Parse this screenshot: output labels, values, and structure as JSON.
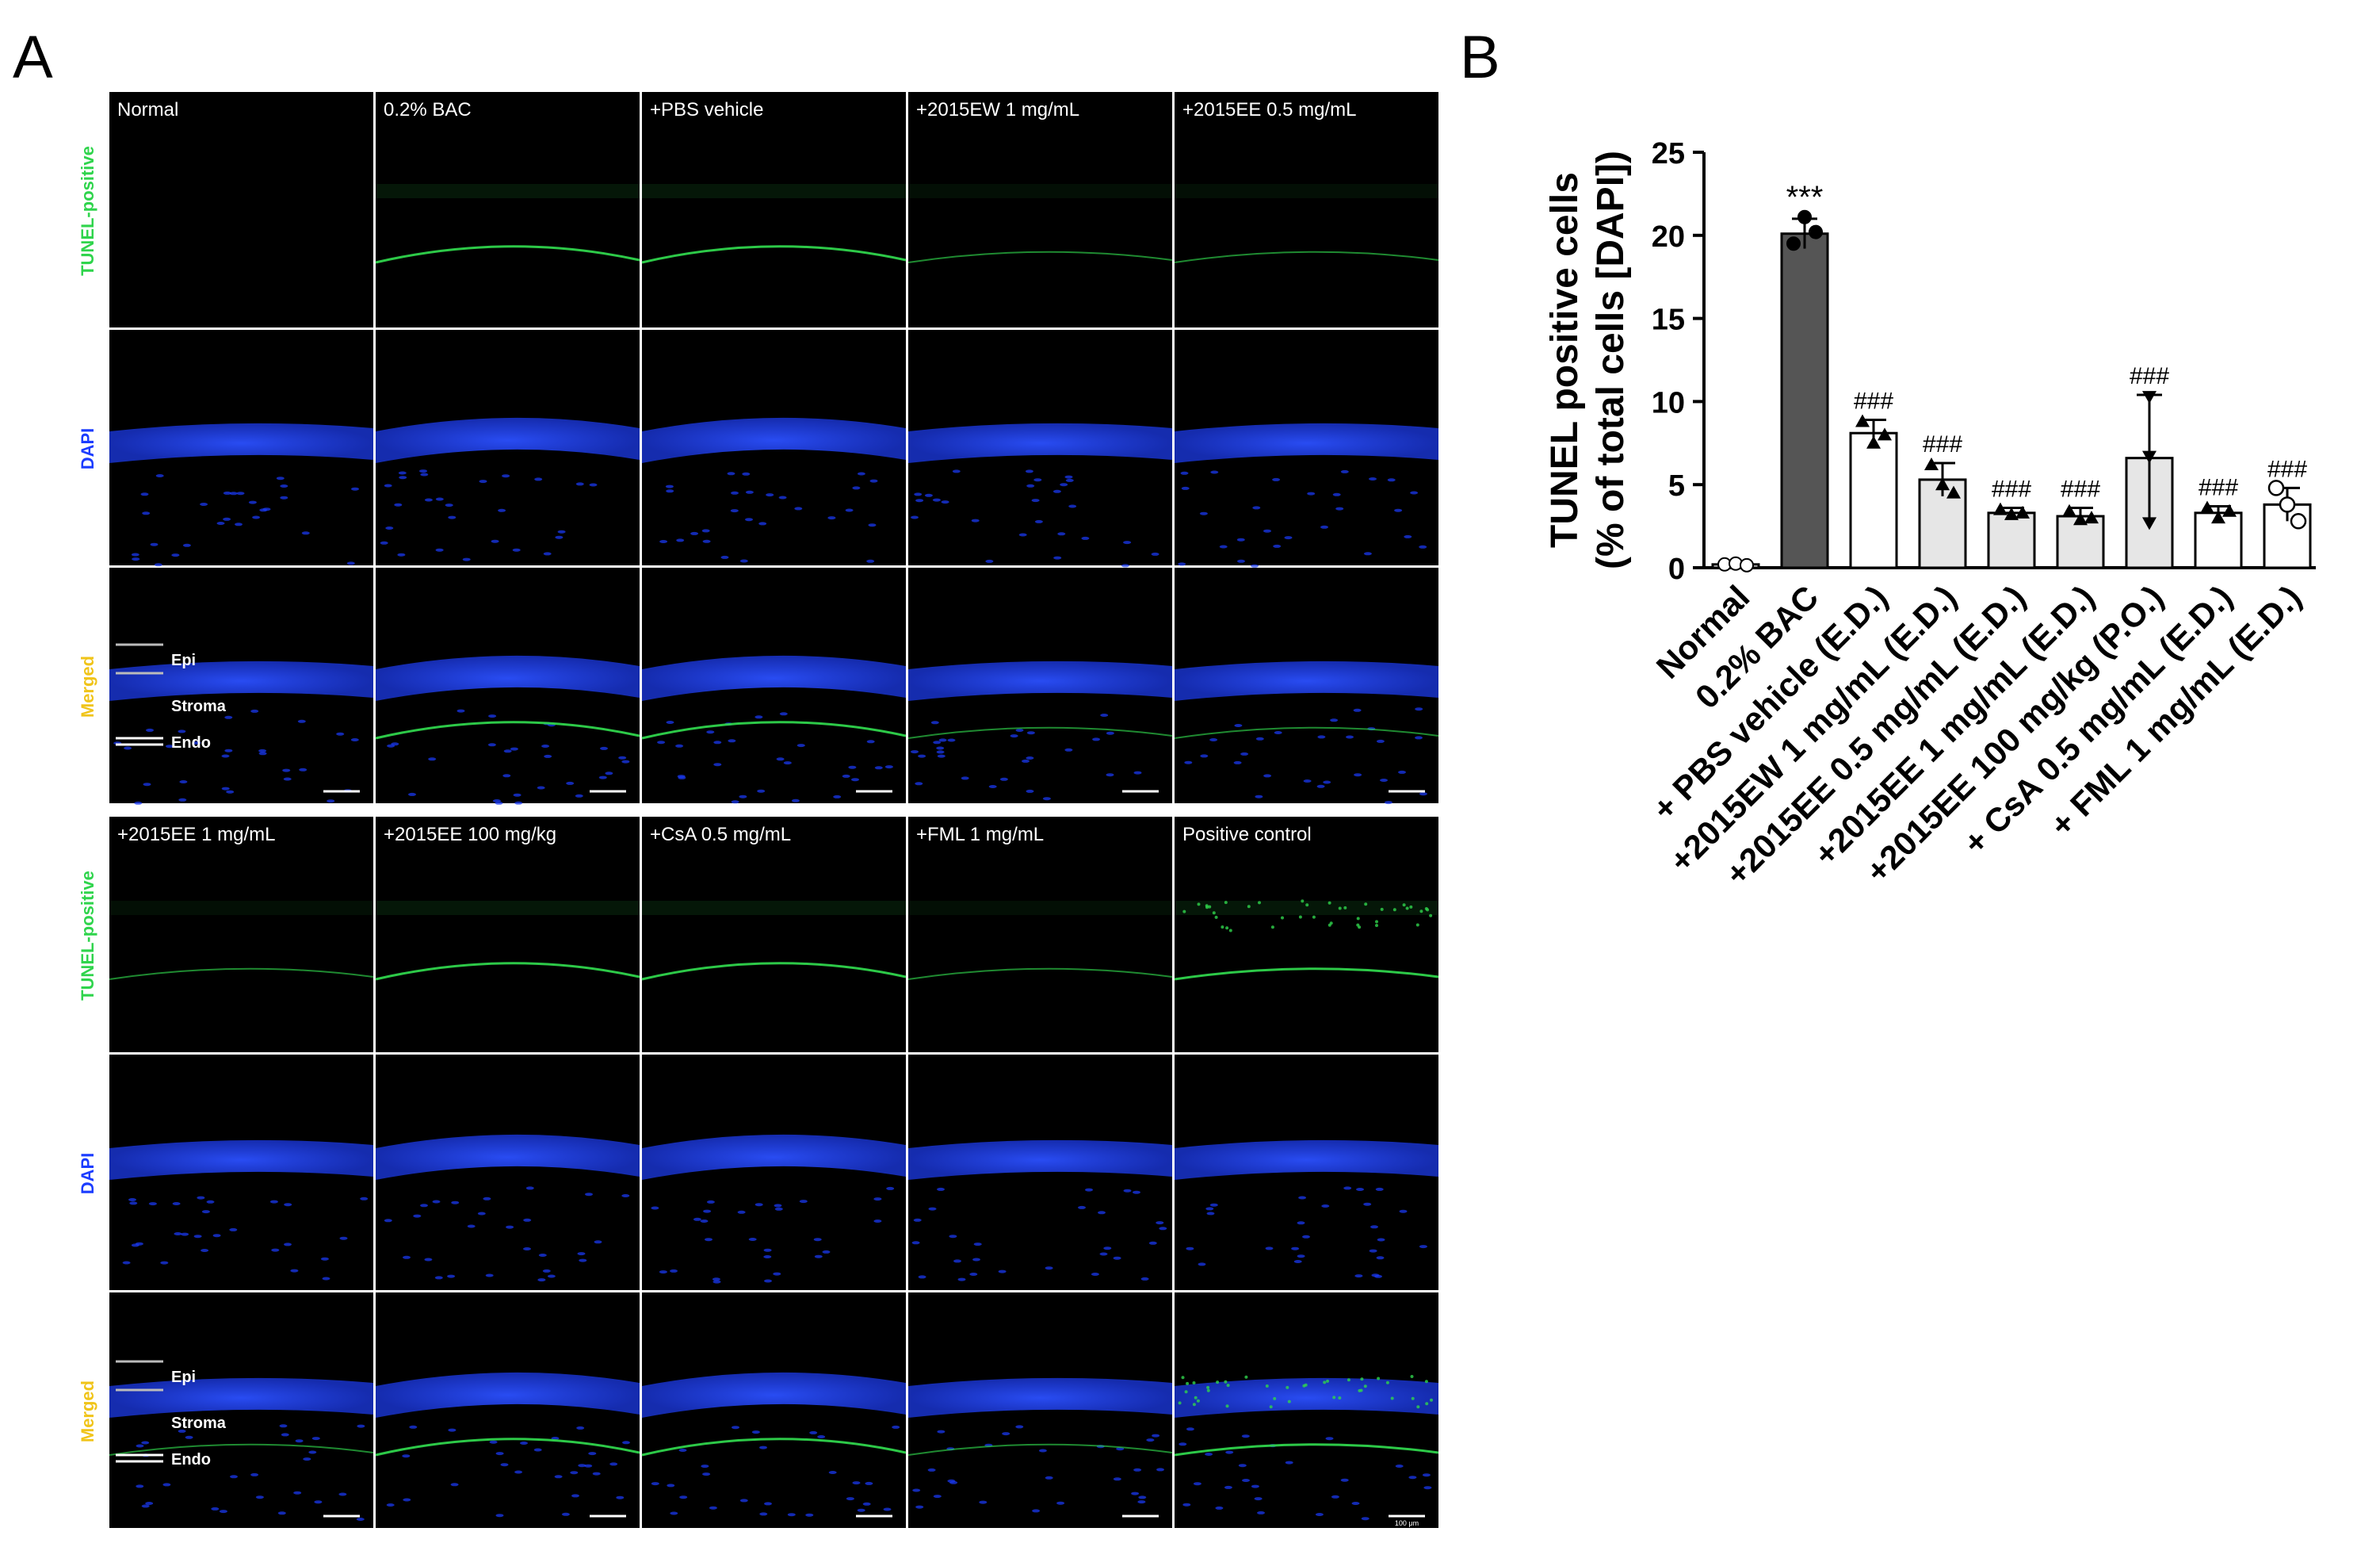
{
  "panel_labels": {
    "a": "A",
    "b": "B"
  },
  "colors": {
    "tunel": "#2fd44c",
    "dapi": "#1b3cff",
    "merged": "#f0c419",
    "bac_bar": "#555555",
    "treatment_bar": "#e6e6e6",
    "open_bar": "#ffffff",
    "tissue_bg": "#000000"
  },
  "micrographs": {
    "row_labels": {
      "tunel": "TUNEL-positive",
      "dapi": "DAPI",
      "merged": "Merged"
    },
    "layer_labels": {
      "epi": "Epi",
      "stroma": "Stroma",
      "endo": "Endo"
    },
    "scale_text": "100 μm",
    "top_block": [
      "Normal",
      "0.2% BAC",
      "+PBS vehicle",
      "+2015EW 1 mg/mL",
      "+2015EE 0.5 mg/mL"
    ],
    "bottom_block": [
      "+2015EE 1 mg/mL",
      "+2015EE 100 mg/kg",
      "+CsA 0.5 mg/mL",
      "+FML 1 mg/mL",
      "Positive control"
    ]
  },
  "chart_data": {
    "type": "bar",
    "ylabel_line1": "TUNEL positive cells",
    "ylabel_line2": "(% of total cells [DAPI])",
    "ylim": [
      0,
      25
    ],
    "yticks": [
      "0",
      "5",
      "10",
      "15",
      "20",
      "25"
    ],
    "categories": [
      "Normal",
      "0.2% BAC",
      "+ PBS vehicle (E.D.)",
      "+2015EW 1 mg/mL (E.D.)",
      "+2015EE 0.5 mg/mL (E.D.)",
      "+2015EE 1 mg/mL (E.D.)",
      "+2015EE 100 mg/kg (P.O.)",
      "+ CsA 0.5 mg/mL (E.D.)",
      "+ FML 1 mg/mL (E.D.)"
    ],
    "values": [
      0.2,
      20.1,
      8.1,
      5.3,
      3.3,
      3.1,
      6.6,
      3.3,
      3.8
    ],
    "errors": [
      0.1,
      0.9,
      0.8,
      1.0,
      0.3,
      0.5,
      3.8,
      0.4,
      1.0
    ],
    "points": [
      [
        0.2,
        0.25,
        0.15
      ],
      [
        19.5,
        21.1,
        20.2
      ],
      [
        8.8,
        7.5,
        8.0
      ],
      [
        6.2,
        5.0,
        4.5
      ],
      [
        3.5,
        3.2,
        3.3
      ],
      [
        3.4,
        2.9,
        3.0
      ],
      [
        10.3,
        6.7,
        2.7
      ],
      [
        3.6,
        3.0,
        3.4
      ],
      [
        4.8,
        3.8,
        2.8
      ]
    ],
    "bar_fill": [
      "white",
      "bac",
      "white",
      "light",
      "light",
      "light",
      "light",
      "white",
      "white"
    ],
    "marker": [
      "circle",
      "circle",
      "triangle",
      "triangle",
      "triangle",
      "triangle",
      "triangle_down",
      "triangle",
      "circle_open"
    ],
    "annotations": [
      "",
      "***",
      "###",
      "###",
      "###",
      "###",
      "###",
      "###",
      "###"
    ]
  }
}
